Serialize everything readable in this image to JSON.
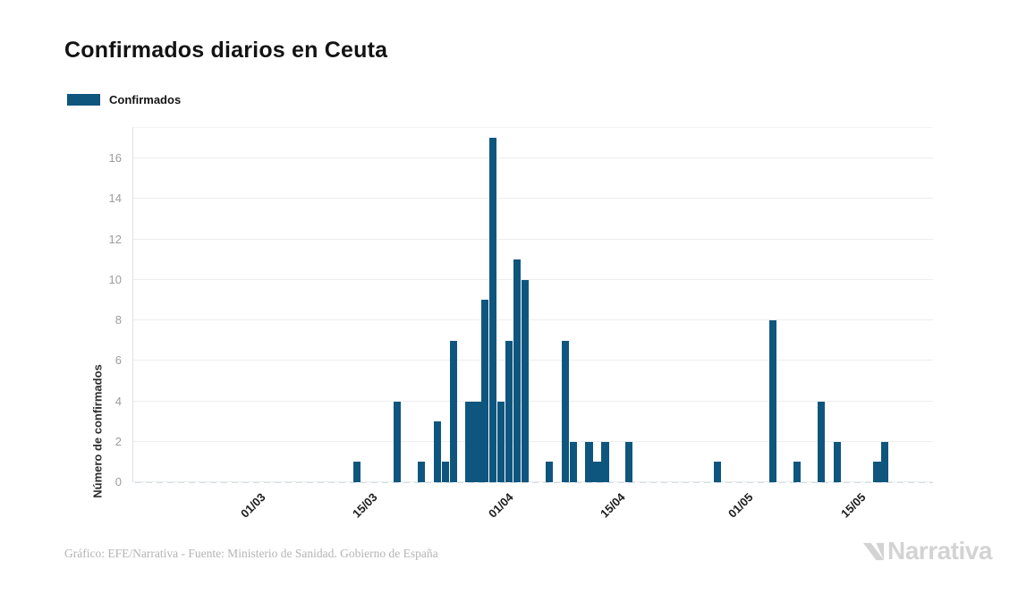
{
  "header": {
    "title": "Confirmados diarios en Ceuta"
  },
  "legend": {
    "items": [
      {
        "label": "Confirmados",
        "color": "#0f567e"
      }
    ]
  },
  "chart_data": {
    "type": "bar",
    "title": "Confirmados diarios en Ceuta",
    "xlabel": "",
    "ylabel": "Número de confirmados",
    "series_name": "Confirmados",
    "bar_color": "#0f567e",
    "legend_position": "top-left",
    "grid": "horizontal",
    "y_ticks": [
      0,
      2,
      4,
      6,
      8,
      10,
      12,
      14,
      16
    ],
    "y_max": 17.55,
    "x_tick_labels": [
      "01/03",
      "15/03",
      "01/04",
      "15/04",
      "01/05",
      "15/05"
    ],
    "x_domain": [
      "14/02",
      "24/05"
    ],
    "zero_days_rendered_as": "dashed baseline",
    "points": [
      {
        "date": "13/03",
        "value": 1
      },
      {
        "date": "18/03",
        "value": 4
      },
      {
        "date": "21/03",
        "value": 1
      },
      {
        "date": "23/03",
        "value": 3
      },
      {
        "date": "24/03",
        "value": 1
      },
      {
        "date": "25/03",
        "value": 7
      },
      {
        "date": "27/03",
        "value": 4
      },
      {
        "date": "28/03",
        "value": 4
      },
      {
        "date": "29/03",
        "value": 9
      },
      {
        "date": "30/03",
        "value": 17
      },
      {
        "date": "31/03",
        "value": 4
      },
      {
        "date": "01/04",
        "value": 7
      },
      {
        "date": "02/04",
        "value": 11
      },
      {
        "date": "03/04",
        "value": 10
      },
      {
        "date": "06/04",
        "value": 1
      },
      {
        "date": "08/04",
        "value": 7
      },
      {
        "date": "09/04",
        "value": 2
      },
      {
        "date": "11/04",
        "value": 2
      },
      {
        "date": "12/04",
        "value": 1
      },
      {
        "date": "13/04",
        "value": 2
      },
      {
        "date": "16/04",
        "value": 2
      },
      {
        "date": "27/04",
        "value": 1
      },
      {
        "date": "04/05",
        "value": 8
      },
      {
        "date": "07/05",
        "value": 1
      },
      {
        "date": "10/05",
        "value": 4
      },
      {
        "date": "12/05",
        "value": 2
      },
      {
        "date": "17/05",
        "value": 1
      },
      {
        "date": "18/05",
        "value": 2
      }
    ]
  },
  "footer": {
    "credit": "Gráfico: EFE/Narrativa - Fuente: Ministerio de Sanidad. Gobierno de España",
    "brand": "Narrativa"
  }
}
